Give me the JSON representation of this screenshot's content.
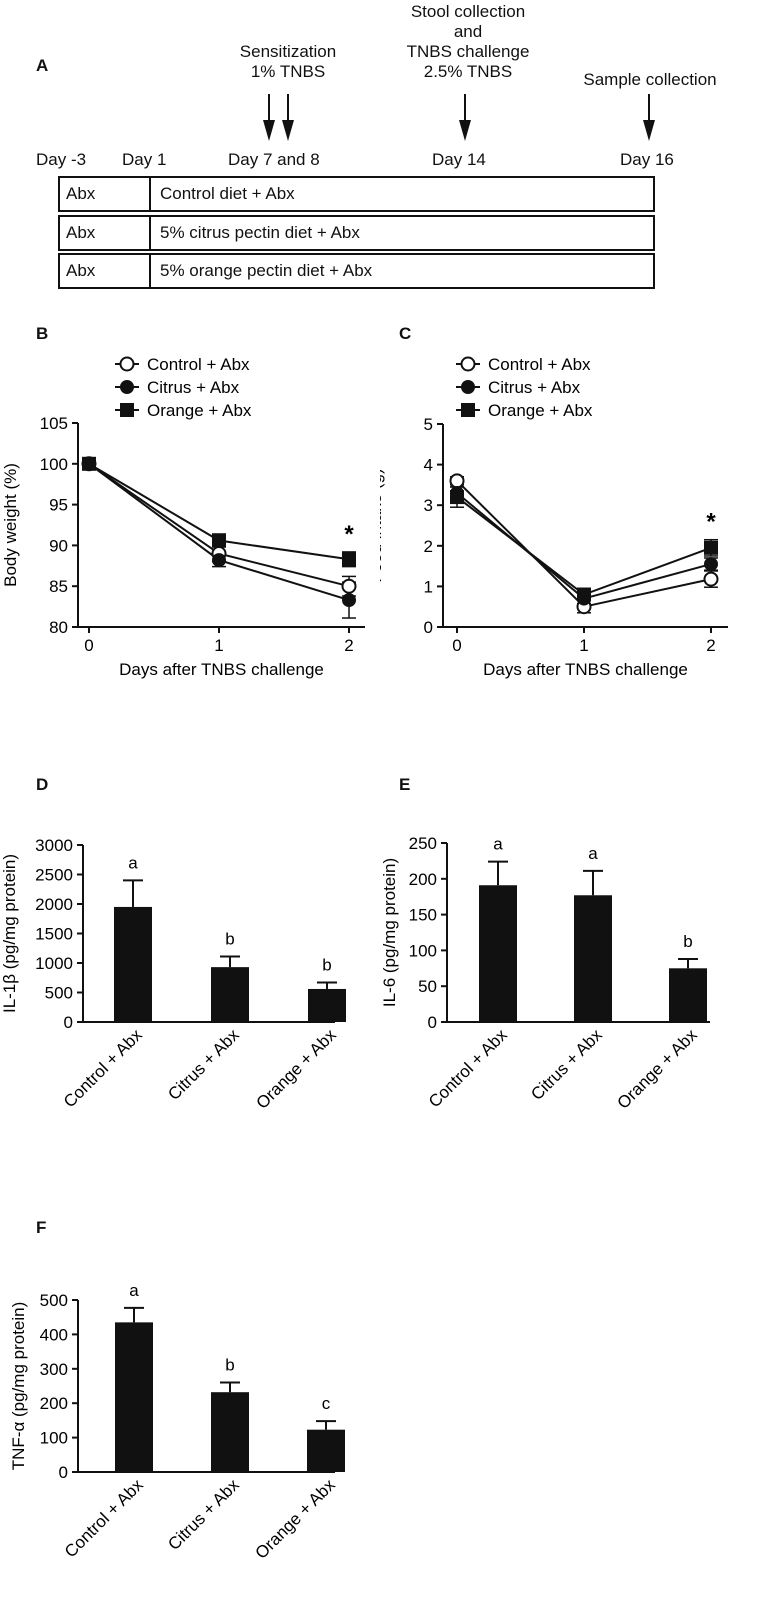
{
  "panel_labels": {
    "A": "A",
    "B": "B",
    "C": "C",
    "D": "D",
    "E": "E",
    "F": "F"
  },
  "timeline": {
    "events": {
      "sensitization": [
        "Sensitization",
        "1% TNBS"
      ],
      "challenge": [
        "Stool collection",
        "and",
        "TNBS challenge",
        "2.5% TNBS"
      ],
      "sample": [
        "Sample collection"
      ]
    },
    "days": [
      "Day -3",
      "Day 1",
      "Day 7 and 8",
      "Day 14",
      "Day 16"
    ],
    "rows": [
      {
        "pre": "Abx",
        "diet": "Control diet + Abx"
      },
      {
        "pre": "Abx",
        "diet": "5% citrus pectin diet + Abx"
      },
      {
        "pre": "Abx",
        "diet": "5% orange pectin diet + Abx"
      }
    ]
  },
  "chart_data": [
    {
      "id": "B",
      "type": "line",
      "title": "",
      "xlabel": "Days after TNBS challenge",
      "ylabel": "Body weight (%)",
      "x": [
        0,
        1,
        2
      ],
      "xticks": [
        "0",
        "1",
        "2"
      ],
      "ylim": [
        80,
        105
      ],
      "yticks": [
        "80",
        "85",
        "90",
        "95",
        "100",
        "105"
      ],
      "legend": [
        "Control + Abx",
        "Citrus + Abx",
        "Orange + Abx"
      ],
      "series": [
        {
          "name": "Control + Abx",
          "marker": "open-circle",
          "values": [
            100,
            89.0,
            85.0
          ],
          "err": [
            0,
            1.0,
            1.2
          ]
        },
        {
          "name": "Citrus + Abx",
          "marker": "filled-circle",
          "values": [
            100,
            88.2,
            83.3
          ],
          "err": [
            0,
            0.8,
            2.2
          ]
        },
        {
          "name": "Orange + Abx",
          "marker": "filled-square",
          "values": [
            100,
            90.6,
            88.3
          ],
          "err": [
            0,
            0.8,
            0.9
          ]
        }
      ],
      "annotations": [
        {
          "x": 2,
          "text": "*"
        }
      ]
    },
    {
      "id": "C",
      "type": "line",
      "title": "",
      "xlabel": "Days after TNBS challenge",
      "ylabel": "Food intake (g)",
      "x": [
        0,
        1,
        2
      ],
      "xticks": [
        "0",
        "1",
        "2"
      ],
      "ylim": [
        0,
        5
      ],
      "yticks": [
        "0",
        "1",
        "2",
        "3",
        "4",
        "5"
      ],
      "legend": [
        "Control + Abx",
        "Citrus + Abx",
        "Orange + Abx"
      ],
      "series": [
        {
          "name": "Control + Abx",
          "marker": "open-circle",
          "values": [
            3.6,
            0.5,
            1.18
          ],
          "err": [
            0.1,
            0.15,
            0.2
          ]
        },
        {
          "name": "Citrus + Abx",
          "marker": "filled-circle",
          "values": [
            3.3,
            0.7,
            1.55
          ],
          "err": [
            0.15,
            0.12,
            0.15
          ]
        },
        {
          "name": "Orange + Abx",
          "marker": "filled-square",
          "values": [
            3.2,
            0.8,
            1.95
          ],
          "err": [
            0.25,
            0.15,
            0.2
          ]
        }
      ],
      "annotations": [
        {
          "x": 2,
          "text": "*"
        }
      ]
    },
    {
      "id": "D",
      "type": "bar",
      "title": "",
      "xlabel": "",
      "ylabel": "IL-1β (pg/mg protein)",
      "categories": [
        "Control + Abx",
        "Citrus + Abx",
        "Orange + Abx"
      ],
      "values": [
        1950,
        930,
        560
      ],
      "err": [
        450,
        180,
        110
      ],
      "letters": [
        "a",
        "b",
        "b"
      ],
      "ylim": [
        0,
        3000
      ],
      "yticks": [
        "0",
        "500",
        "1000",
        "1500",
        "2000",
        "2500",
        "3000"
      ]
    },
    {
      "id": "E",
      "type": "bar",
      "title": "",
      "xlabel": "",
      "ylabel": "IL-6 (pg/mg protein)",
      "categories": [
        "Control + Abx",
        "Citrus + Abx",
        "Orange + Abx"
      ],
      "values": [
        191,
        177,
        75
      ],
      "err": [
        33,
        34,
        13
      ],
      "letters": [
        "a",
        "a",
        "b"
      ],
      "ylim": [
        0,
        250
      ],
      "yticks": [
        "0",
        "50",
        "100",
        "150",
        "200",
        "250"
      ]
    },
    {
      "id": "F",
      "type": "bar",
      "title": "",
      "xlabel": "",
      "ylabel": "TNF-α (pg/mg protein)",
      "categories": [
        "Control + Abx",
        "Citrus + Abx",
        "Orange + Abx"
      ],
      "values": [
        435,
        232,
        123
      ],
      "err": [
        42,
        28,
        25
      ],
      "letters": [
        "a",
        "b",
        "c"
      ],
      "ylim": [
        0,
        500
      ],
      "yticks": [
        "0",
        "100",
        "200",
        "300",
        "400",
        "500"
      ]
    }
  ]
}
